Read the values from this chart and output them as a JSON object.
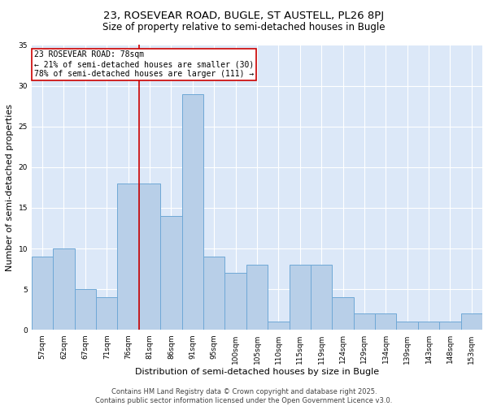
{
  "title": "23, ROSEVEAR ROAD, BUGLE, ST AUSTELL, PL26 8PJ",
  "subtitle": "Size of property relative to semi-detached houses in Bugle",
  "xlabel": "Distribution of semi-detached houses by size in Bugle",
  "ylabel": "Number of semi-detached properties",
  "categories": [
    "57sqm",
    "62sqm",
    "67sqm",
    "71sqm",
    "76sqm",
    "81sqm",
    "86sqm",
    "91sqm",
    "95sqm",
    "100sqm",
    "105sqm",
    "110sqm",
    "115sqm",
    "119sqm",
    "124sqm",
    "129sqm",
    "134sqm",
    "139sqm",
    "143sqm",
    "148sqm",
    "153sqm"
  ],
  "values": [
    9,
    10,
    5,
    4,
    18,
    18,
    14,
    29,
    9,
    7,
    8,
    1,
    8,
    8,
    4,
    2,
    2,
    1,
    1,
    1,
    2
  ],
  "bar_color": "#b8cfe8",
  "bar_edge_color": "#6fa8d6",
  "marker_index": 4,
  "marker_label": "23 ROSEVEAR ROAD: 78sqm",
  "annotation_line1": "← 21% of semi-detached houses are smaller (30)",
  "annotation_line2": "78% of semi-detached houses are larger (111) →",
  "vline_color": "#cc0000",
  "box_edge_color": "#cc0000",
  "ylim": [
    0,
    35
  ],
  "yticks": [
    0,
    5,
    10,
    15,
    20,
    25,
    30,
    35
  ],
  "fig_bg_color": "#ffffff",
  "plot_bg_color": "#dce8f8",
  "grid_color": "#ffffff",
  "footer_line1": "Contains HM Land Registry data © Crown copyright and database right 2025.",
  "footer_line2": "Contains public sector information licensed under the Open Government Licence v3.0.",
  "title_fontsize": 9.5,
  "subtitle_fontsize": 8.5,
  "axis_label_fontsize": 8,
  "tick_fontsize": 6.5,
  "annotation_fontsize": 7,
  "footer_fontsize": 6
}
